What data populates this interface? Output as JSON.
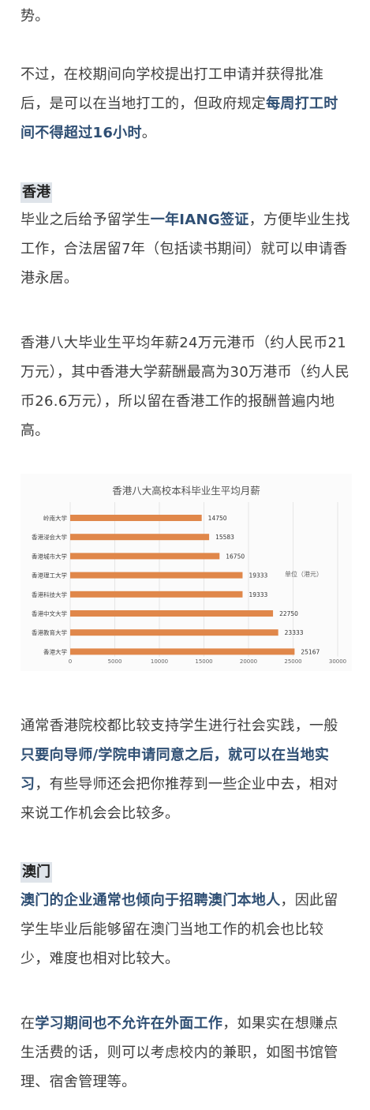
{
  "p0": {
    "t1": "势。"
  },
  "p1": {
    "t1": "不过，在校期间向学校提出打工申请并获得批准后，是可以在当地打工的，但政府规定",
    "b1": "每周打工时间不得超过16小时",
    "t2": "。"
  },
  "hk": {
    "heading": "香港",
    "p1": {
      "t1": "毕业之后给予留学生",
      "b1": "一年IANG签证",
      "t2": "，方便毕业生找工作，合法居留7年（包括读书期间）就可以申请香港永居。"
    },
    "p2": {
      "t1": "香港八大毕业生平均年薪24万元港币（约人民币21万元），其中香港大学薪酬最高为30万港币（约人民币26.6万元），所以留在香港工作的报酬普遍内地高。"
    },
    "p3": {
      "t1": "通常香港院校都比较支持学生进行社会实践，一般",
      "b1": "只要向导师/学院申请同意之后，就可以在当地实习",
      "t2": "，有些导师还会把你推荐到一些企业中去，相对来说工作机会会比较多。"
    }
  },
  "macau": {
    "heading": "澳门",
    "p1": {
      "b1": "澳门的企业通常也倾向于招聘澳门本地人",
      "t1": "，因此留学生毕业后能够留在澳门当地工作的机会也比较少，难度也相对比较大。"
    },
    "p2": {
      "t1": "在",
      "b1": "学习期间也不允许在外面工作",
      "t2": "，如果实在想赚点生活费的话，则可以考虑校内的兼职，如图书馆管理、宿舍管理等。"
    }
  },
  "chart_data": {
    "type": "bar",
    "orientation": "horizontal",
    "title": "香港八大高校本科毕业生平均月薪",
    "unit_label": "单位（港元）",
    "categories": [
      "岭南大学",
      "香港浸会大学",
      "香港城市大学",
      "香港理工大学",
      "香港科技大学",
      "香港中文大学",
      "香港教育大学",
      "香港大学"
    ],
    "values": [
      14750,
      15583,
      16750,
      19333,
      19333,
      22750,
      23333,
      25167
    ],
    "xlim": [
      0,
      30000
    ],
    "xticks": [
      "0",
      "5000",
      "10000",
      "15000",
      "20000",
      "25000",
      "30000"
    ],
    "bar_color": "#e0874a",
    "grid": true
  }
}
